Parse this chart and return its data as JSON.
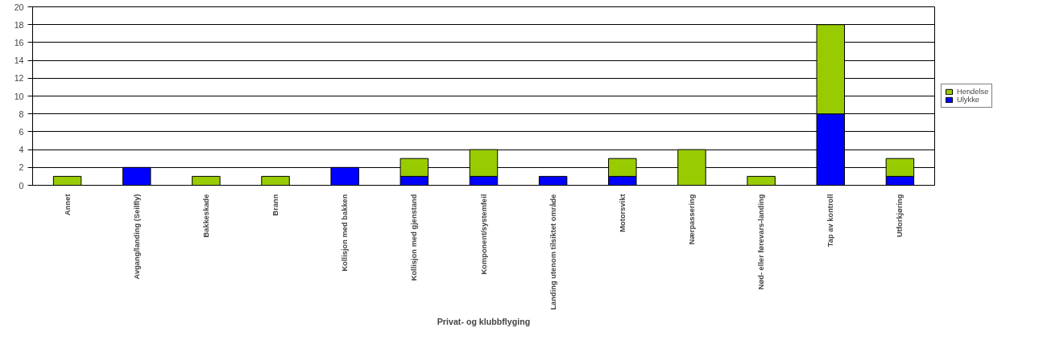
{
  "chart_data": {
    "type": "bar",
    "stacked": true,
    "xlabel": "Privat- og klubbflyging",
    "categories": [
      "Annet",
      "Avgang/landing (Seilfly)",
      "Bakkeskade",
      "Brann",
      "Kollisjon med bakken",
      "Kollisjon med gjenstand",
      "Komponent/systemfeil",
      "Landing utenom tilsiktet område",
      "Motorsvikt",
      "Nærpassering",
      "Nød- eller førevars-landing",
      "Tap av kontroll",
      "Utforkjøring"
    ],
    "series": [
      {
        "name": "Ulykke",
        "color": "#0000ff",
        "values": [
          0,
          2,
          0,
          0,
          2,
          1,
          1,
          1,
          1,
          0,
          0,
          8,
          1
        ]
      },
      {
        "name": "Hendelse",
        "color": "#99cc00",
        "values": [
          1,
          0,
          1,
          1,
          0,
          2,
          3,
          0,
          2,
          4,
          1,
          10,
          2
        ]
      }
    ],
    "ylim": [
      0,
      20
    ],
    "yticks": [
      0,
      2,
      4,
      6,
      8,
      10,
      12,
      14,
      16,
      18,
      20
    ],
    "grid": "y",
    "legend": "right"
  }
}
